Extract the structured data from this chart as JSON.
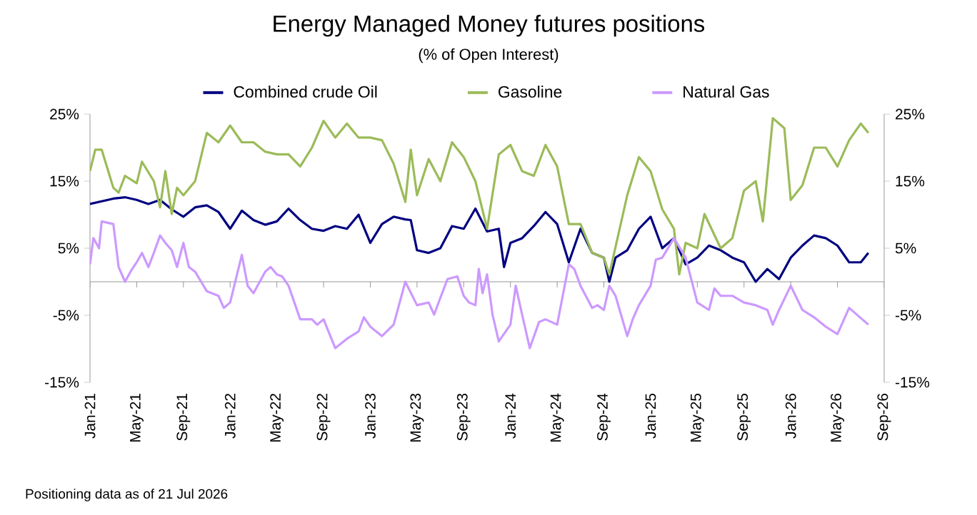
{
  "chart_data": {
    "type": "line",
    "title": "Energy Managed Money futures positions",
    "subtitle": "(% of Open Interest)",
    "annotations": [
      "Positioning data as of 21 Jul 2026"
    ],
    "legend": "top",
    "grid": false,
    "marker": "none",
    "line_style": "solid",
    "xlim": [
      "2021-01-01",
      "2026-09-01"
    ],
    "xticks": [
      {
        "value": "2021-01-01",
        "label": "Jan-21"
      },
      {
        "value": "2021-05-01",
        "label": "May-21"
      },
      {
        "value": "2021-09-01",
        "label": "Sep-21"
      },
      {
        "value": "2022-01-01",
        "label": "Jan-22"
      },
      {
        "value": "2022-05-01",
        "label": "May-22"
      },
      {
        "value": "2022-09-01",
        "label": "Sep-22"
      },
      {
        "value": "2023-01-01",
        "label": "Jan-23"
      },
      {
        "value": "2023-05-01",
        "label": "May-23"
      },
      {
        "value": "2023-09-01",
        "label": "Sep-23"
      },
      {
        "value": "2024-01-01",
        "label": "Jan-24"
      },
      {
        "value": "2024-05-01",
        "label": "May-24"
      },
      {
        "value": "2024-09-01",
        "label": "Sep-24"
      },
      {
        "value": "2025-01-01",
        "label": "Jan-25"
      },
      {
        "value": "2025-05-01",
        "label": "May-25"
      },
      {
        "value": "2025-09-01",
        "label": "Sep-25"
      },
      {
        "value": "2026-01-01",
        "label": "Jan-26"
      },
      {
        "value": "2026-05-01",
        "label": "May-26"
      },
      {
        "value": "2026-09-01",
        "label": "Sep-26"
      }
    ],
    "ylim": [
      -15,
      25
    ],
    "yticks": [
      {
        "value": -15,
        "label": "-15%"
      },
      {
        "value": -5,
        "label": "-5%"
      },
      {
        "value": 5,
        "label": "5%"
      },
      {
        "value": 15,
        "label": "15%"
      },
      {
        "value": 25,
        "label": "25%"
      }
    ],
    "y2lim": [
      -15,
      25
    ],
    "y2ticks": [
      {
        "value": -15,
        "label": "-15%"
      },
      {
        "value": -5,
        "label": "-5%"
      },
      {
        "value": 5,
        "label": "5%"
      },
      {
        "value": 15,
        "label": "15%"
      },
      {
        "value": 25,
        "label": "25%"
      }
    ],
    "series": [
      {
        "name": "Combined crude Oil",
        "color": "#000080",
        "x": [
          "2021-01-01",
          "2021-03-01",
          "2021-04-01",
          "2021-05-01",
          "2021-06-01",
          "2021-07-01",
          "2021-08-01",
          "2021-09-01",
          "2021-10-01",
          "2021-11-01",
          "2021-12-01",
          "2022-01-01",
          "2022-02-01",
          "2022-03-01",
          "2022-04-01",
          "2022-05-01",
          "2022-06-01",
          "2022-07-01",
          "2022-08-01",
          "2022-09-01",
          "2022-10-01",
          "2022-11-01",
          "2022-12-01",
          "2023-01-01",
          "2023-02-01",
          "2023-03-01",
          "2023-04-01",
          "2023-04-15",
          "2023-05-01",
          "2023-06-01",
          "2023-07-01",
          "2023-08-01",
          "2023-09-01",
          "2023-10-01",
          "2023-11-01",
          "2023-12-01",
          "2023-12-15",
          "2024-01-01",
          "2024-02-01",
          "2024-03-01",
          "2024-04-01",
          "2024-05-01",
          "2024-06-01",
          "2024-07-01",
          "2024-08-01",
          "2024-09-01",
          "2024-09-15",
          "2024-10-01",
          "2024-11-01",
          "2024-12-01",
          "2025-01-01",
          "2025-02-01",
          "2025-03-01",
          "2025-04-01",
          "2025-05-01",
          "2025-06-01",
          "2025-07-01",
          "2025-08-01",
          "2025-09-01",
          "2025-10-01",
          "2025-11-01",
          "2025-12-01",
          "2026-01-01",
          "2026-02-01",
          "2026-03-01",
          "2026-04-01",
          "2026-05-01",
          "2026-06-01",
          "2026-07-01",
          "2026-07-21"
        ],
        "values": [
          11.6,
          12.4,
          12.6,
          12.2,
          11.6,
          12.2,
          10.8,
          9.7,
          11.1,
          11.4,
          10.4,
          7.9,
          10.6,
          9.2,
          8.5,
          9.0,
          10.9,
          9.2,
          7.9,
          7.6,
          8.3,
          7.9,
          10.0,
          5.8,
          8.6,
          9.7,
          9.3,
          9.2,
          4.7,
          4.3,
          5.0,
          8.3,
          7.9,
          10.9,
          7.5,
          7.9,
          2.2,
          5.8,
          6.5,
          8.3,
          10.4,
          8.6,
          2.9,
          7.9,
          4.3,
          3.6,
          0.0,
          3.6,
          4.7,
          7.9,
          9.7,
          5.0,
          6.5,
          2.6,
          3.6,
          5.4,
          4.7,
          3.6,
          2.9,
          0.0,
          1.9,
          0.4,
          3.6,
          5.4,
          6.9,
          6.5,
          5.4,
          2.9,
          2.9,
          4.3
        ]
      },
      {
        "name": "Gasoline",
        "color": "#9bbb59",
        "x": [
          "2021-01-01",
          "2021-01-15",
          "2021-02-01",
          "2021-03-01",
          "2021-03-15",
          "2021-04-01",
          "2021-05-01",
          "2021-05-15",
          "2021-06-15",
          "2021-07-01",
          "2021-07-15",
          "2021-08-01",
          "2021-08-15",
          "2021-09-01",
          "2021-10-01",
          "2021-11-01",
          "2021-12-01",
          "2022-01-01",
          "2022-02-01",
          "2022-03-01",
          "2022-04-01",
          "2022-05-01",
          "2022-06-01",
          "2022-07-01",
          "2022-08-01",
          "2022-09-01",
          "2022-10-01",
          "2022-11-01",
          "2022-12-01",
          "2023-01-01",
          "2023-02-01",
          "2023-03-01",
          "2023-04-01",
          "2023-04-15",
          "2023-05-01",
          "2023-06-01",
          "2023-07-01",
          "2023-08-01",
          "2023-09-01",
          "2023-10-01",
          "2023-11-01",
          "2023-12-01",
          "2024-01-01",
          "2024-02-01",
          "2024-03-01",
          "2024-04-01",
          "2024-05-01",
          "2024-06-01",
          "2024-07-01",
          "2024-08-01",
          "2024-09-01",
          "2024-09-15",
          "2024-11-01",
          "2024-12-01",
          "2025-01-01",
          "2025-02-01",
          "2025-03-01",
          "2025-03-15",
          "2025-04-01",
          "2025-05-01",
          "2025-05-20",
          "2025-07-01",
          "2025-08-01",
          "2025-09-01",
          "2025-10-01",
          "2025-10-20",
          "2025-11-15",
          "2025-12-15",
          "2026-01-01",
          "2026-02-01",
          "2026-03-01",
          "2026-04-01",
          "2026-05-01",
          "2026-06-01",
          "2026-07-01",
          "2026-07-21"
        ],
        "values": [
          16.5,
          19.7,
          19.7,
          14.0,
          13.3,
          15.8,
          14.7,
          17.9,
          15.0,
          11.1,
          16.5,
          10.1,
          14.0,
          12.9,
          15.0,
          22.2,
          20.8,
          23.3,
          20.8,
          20.8,
          19.4,
          19.0,
          19.0,
          17.2,
          20.0,
          24.0,
          21.5,
          23.6,
          21.5,
          21.5,
          21.1,
          17.6,
          11.9,
          19.7,
          12.9,
          18.3,
          15.0,
          20.8,
          18.6,
          15.0,
          7.9,
          19.0,
          20.4,
          16.5,
          15.8,
          20.4,
          17.2,
          8.6,
          8.6,
          4.3,
          3.6,
          1.1,
          12.9,
          18.6,
          16.5,
          10.8,
          7.9,
          1.1,
          5.8,
          5.0,
          10.1,
          5.0,
          6.5,
          13.6,
          15.0,
          9.0,
          24.4,
          22.9,
          12.2,
          14.4,
          20.0,
          20.0,
          17.2,
          21.1,
          23.6,
          22.2
        ]
      },
      {
        "name": "Natural Gas",
        "color": "#cc99ff",
        "x": [
          "2021-01-01",
          "2021-01-10",
          "2021-01-25",
          "2021-02-01",
          "2021-03-01",
          "2021-03-15",
          "2021-04-01",
          "2021-04-15",
          "2021-05-01",
          "2021-05-15",
          "2021-06-01",
          "2021-06-15",
          "2021-07-01",
          "2021-07-15",
          "2021-08-01",
          "2021-08-15",
          "2021-09-01",
          "2021-09-15",
          "2021-10-01",
          "2021-11-01",
          "2021-12-01",
          "2021-12-15",
          "2022-01-01",
          "2022-02-01",
          "2022-02-15",
          "2022-03-01",
          "2022-04-01",
          "2022-04-15",
          "2022-05-01",
          "2022-05-15",
          "2022-06-01",
          "2022-07-01",
          "2022-08-01",
          "2022-08-15",
          "2022-09-01",
          "2022-10-01",
          "2022-11-01",
          "2022-12-01",
          "2022-12-15",
          "2023-01-01",
          "2023-02-01",
          "2023-03-01",
          "2023-04-01",
          "2023-05-01",
          "2023-06-01",
          "2023-06-15",
          "2023-07-01",
          "2023-07-20",
          "2023-08-15",
          "2023-09-01",
          "2023-09-15",
          "2023-10-01",
          "2023-10-10",
          "2023-10-20",
          "2023-11-01",
          "2023-11-15",
          "2023-12-01",
          "2024-01-01",
          "2024-01-15",
          "2024-02-01",
          "2024-02-20",
          "2024-03-15",
          "2024-04-01",
          "2024-05-01",
          "2024-06-01",
          "2024-06-15",
          "2024-07-01",
          "2024-08-01",
          "2024-08-15",
          "2024-09-01",
          "2024-09-15",
          "2024-10-01",
          "2024-11-01",
          "2024-11-15",
          "2024-12-01",
          "2025-01-01",
          "2025-01-15",
          "2025-02-01",
          "2025-03-01",
          "2025-04-01",
          "2025-05-01",
          "2025-06-01",
          "2025-06-15",
          "2025-07-01",
          "2025-08-01",
          "2025-09-01",
          "2025-10-01",
          "2025-11-01",
          "2025-11-15",
          "2025-12-01",
          "2026-01-01",
          "2026-02-01",
          "2026-03-01",
          "2026-04-01",
          "2026-05-01",
          "2026-06-01",
          "2026-07-21"
        ],
        "values": [
          2.6,
          6.5,
          5.0,
          9.0,
          8.6,
          2.2,
          0.0,
          1.5,
          2.9,
          4.3,
          2.2,
          4.3,
          6.9,
          5.8,
          4.7,
          2.2,
          5.8,
          2.2,
          1.5,
          -1.4,
          -2.1,
          -3.9,
          -3.1,
          4.0,
          -0.6,
          -1.7,
          1.5,
          2.2,
          1.1,
          0.8,
          -0.6,
          -5.6,
          -5.6,
          -6.4,
          -5.6,
          -9.9,
          -8.5,
          -7.4,
          -5.3,
          -6.7,
          -8.1,
          -6.4,
          0.0,
          -3.5,
          -3.1,
          -4.9,
          -2.4,
          0.4,
          0.8,
          -2.1,
          -3.1,
          -3.5,
          1.9,
          -1.7,
          1.1,
          -4.9,
          -8.9,
          -6.4,
          -0.6,
          -4.9,
          -9.9,
          -6.0,
          -5.6,
          -6.4,
          2.6,
          1.9,
          -0.6,
          -3.9,
          -3.5,
          -4.2,
          -0.6,
          -2.1,
          -8.1,
          -5.6,
          -3.5,
          -0.6,
          3.3,
          3.6,
          6.5,
          3.6,
          -3.1,
          -4.2,
          -1.0,
          -2.1,
          -2.1,
          -3.1,
          -3.5,
          -4.2,
          -6.4,
          -4.2,
          -0.6,
          -4.2,
          -5.3,
          -6.7,
          -7.8,
          -3.9,
          -6.4
        ]
      }
    ]
  }
}
